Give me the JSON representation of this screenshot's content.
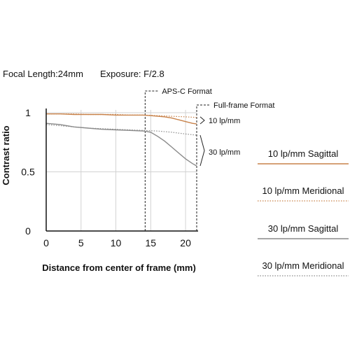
{
  "header": {
    "focal_length": "Focal Length:24mm",
    "exposure": "Exposure: F/2.8"
  },
  "colors": {
    "orange": "#c8824a",
    "gray": "#8a8a8a",
    "grid": "#d2d2d2",
    "axis": "#111111"
  },
  "chart_data": {
    "type": "line",
    "title": "",
    "xlabel": "Distance from center of frame (mm)",
    "ylabel": "Contrast ratio",
    "xlim": [
      0,
      21.6
    ],
    "ylim": [
      0,
      1
    ],
    "x_ticks": [
      "0",
      "5",
      "10",
      "15",
      "20"
    ],
    "x_tick_values": [
      0,
      5,
      10,
      15,
      20
    ],
    "y_ticks": [
      "0",
      "0.5",
      "1"
    ],
    "y_tick_values": [
      0,
      0.5,
      1
    ],
    "grid": true,
    "legend_position": "right",
    "format_markers": [
      {
        "label": "APS-C Format",
        "x": 14.2
      },
      {
        "label": "Full-frame Format",
        "x": 21.6
      }
    ],
    "group_labels": [
      "10 lp/mm",
      "30 lp/mm"
    ],
    "series": [
      {
        "name": "10 lp/mm Sagittal",
        "color": "#c8824a",
        "dash": "solid",
        "x": [
          0,
          2,
          4,
          6,
          8,
          10,
          12,
          14,
          15,
          16,
          17,
          18,
          19,
          20,
          21,
          21.6
        ],
        "y": [
          0.99,
          0.99,
          0.985,
          0.985,
          0.985,
          0.98,
          0.98,
          0.98,
          0.975,
          0.97,
          0.965,
          0.955,
          0.94,
          0.925,
          0.91,
          0.905
        ]
      },
      {
        "name": "10 lp/mm Meridional",
        "color": "#c8824a",
        "dash": "dotted",
        "x": [
          0,
          2,
          4,
          6,
          8,
          10,
          12,
          14,
          16,
          18,
          20,
          21.6
        ],
        "y": [
          0.99,
          0.99,
          0.99,
          0.985,
          0.985,
          0.985,
          0.98,
          0.98,
          0.975,
          0.97,
          0.965,
          0.96
        ]
      },
      {
        "name": "30 lp/mm Sagittal",
        "color": "#8a8a8a",
        "dash": "solid",
        "x": [
          0,
          2,
          4,
          6,
          8,
          10,
          12,
          14,
          15,
          16,
          17,
          18,
          19,
          20,
          21,
          21.6
        ],
        "y": [
          0.91,
          0.9,
          0.88,
          0.87,
          0.86,
          0.855,
          0.85,
          0.845,
          0.835,
          0.8,
          0.76,
          0.71,
          0.66,
          0.61,
          0.57,
          0.55
        ]
      },
      {
        "name": "30 lp/mm Meridional",
        "color": "#8a8a8a",
        "dash": "dotted",
        "x": [
          0,
          2,
          4,
          6,
          8,
          10,
          12,
          14,
          16,
          18,
          20,
          21.6
        ],
        "y": [
          0.9,
          0.89,
          0.88,
          0.87,
          0.865,
          0.86,
          0.855,
          0.85,
          0.845,
          0.835,
          0.82,
          0.81
        ]
      }
    ]
  }
}
